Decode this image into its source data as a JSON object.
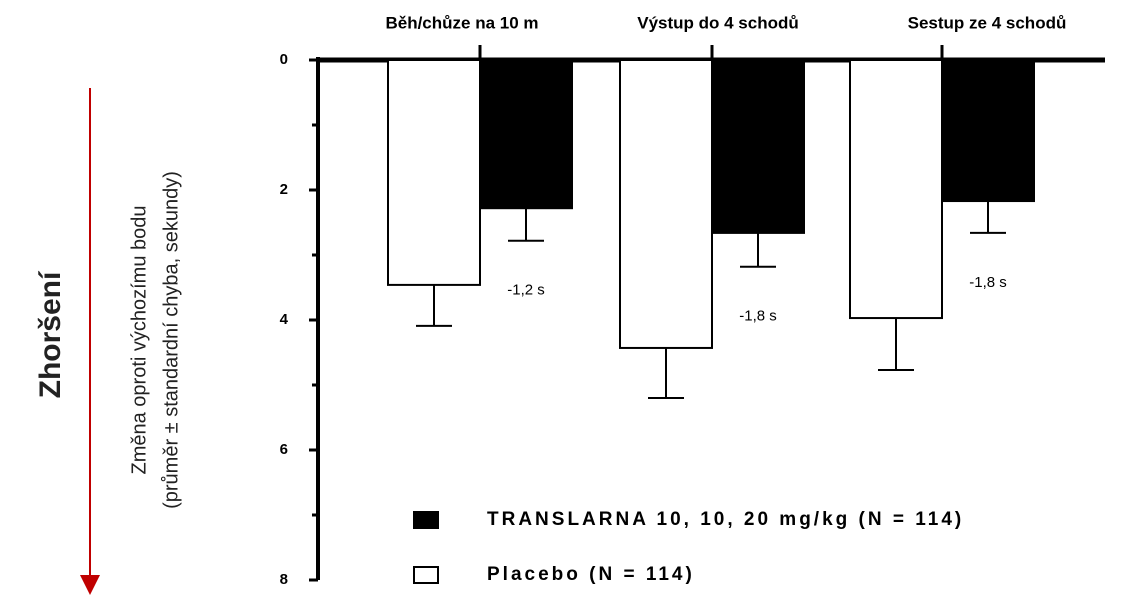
{
  "chart_data": {
    "type": "bar",
    "side_label": "Zhoršení",
    "ylabel": [
      "Změna oproti výchozímu bodu",
      "(průměr ± standardní chyba, sekundy)"
    ],
    "categories": [
      "Běh/chůze na 10 m",
      "Výstup do 4 schodů",
      "Sestup ze 4 schodů"
    ],
    "series": [
      {
        "name": "Placebo (N = 114)",
        "color": "#ffffff",
        "values": [
          3.46,
          4.43,
          3.97
        ],
        "errors": [
          0.63,
          0.77,
          0.8
        ]
      },
      {
        "name": "TRANSLARNA 10, 10, 20 mg/kg (N = 114)",
        "color": "#000000",
        "values": [
          2.28,
          2.66,
          2.17
        ],
        "errors": [
          0.5,
          0.52,
          0.49
        ]
      }
    ],
    "annotations": [
      "-1,2 s",
      "-1,8 s",
      "-1,8 s"
    ],
    "ylim": [
      0,
      8
    ],
    "yticks": [
      0,
      2,
      4,
      6,
      8
    ],
    "y_minor_ticks": [
      1,
      3,
      5,
      7
    ],
    "y_inverted": true
  }
}
